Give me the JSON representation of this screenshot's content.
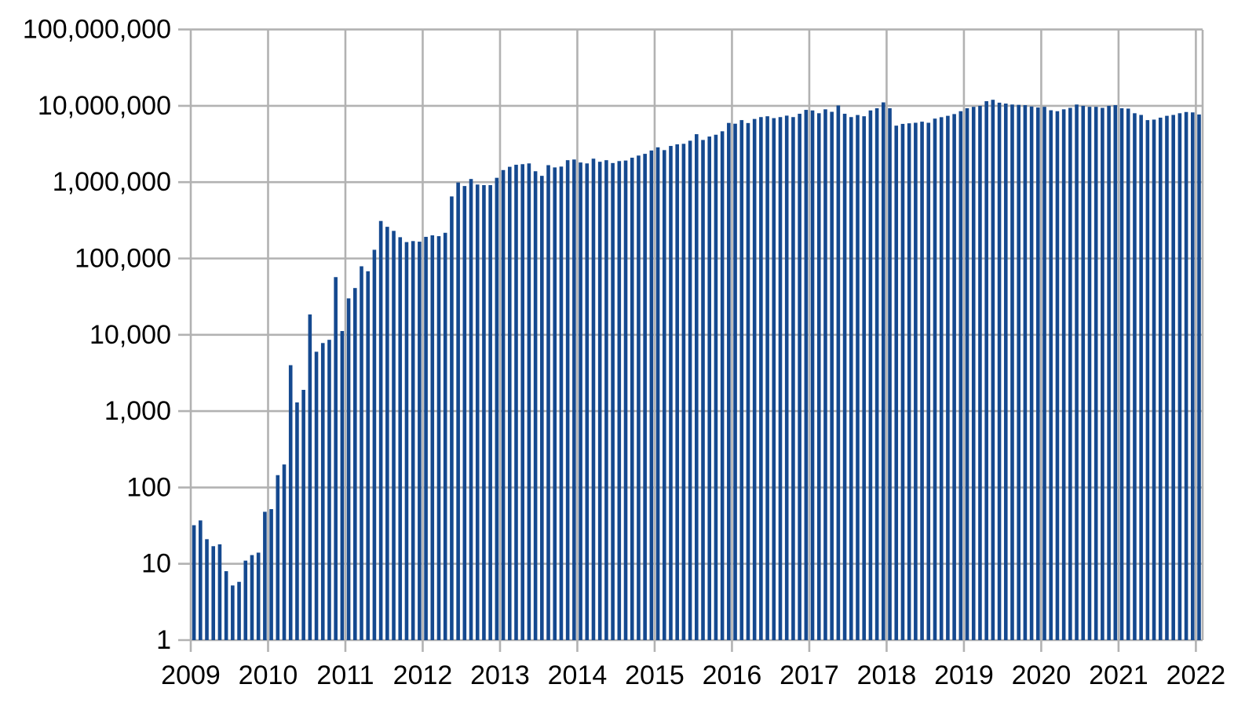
{
  "chart_data": {
    "type": "bar",
    "title": "",
    "xlabel": "",
    "ylabel": "",
    "y_scale": "log",
    "ylim": [
      1,
      100000000
    ],
    "grid": true,
    "legend": false,
    "bar_color": "#15498f",
    "grid_color": "#b2b2b2",
    "text_color": "#000000",
    "background_color": "#ffffff",
    "x_tick_labels": [
      "2009",
      "2010",
      "2011",
      "2012",
      "2013",
      "2014",
      "2015",
      "2016",
      "2017",
      "2018",
      "2019",
      "2020",
      "2021",
      "2022"
    ],
    "y_tick_labels": [
      "1",
      "10",
      "100",
      "1,000",
      "10,000",
      "100,000",
      "1,000,000",
      "10,000,000",
      "100,000,000"
    ],
    "x_unit": "month",
    "start_month": "2009-01",
    "end_month": "2022-01",
    "values_by_year": {
      "2009": [
        32,
        37,
        21,
        17,
        18,
        8,
        5.2,
        5.8,
        11,
        13,
        14,
        48
      ],
      "2010": [
        52,
        145,
        200,
        4000,
        1300,
        1900,
        18500,
        6000,
        7800,
        8600,
        57000,
        11200
      ],
      "2011": [
        30000,
        41000,
        79000,
        68000,
        130000,
        310000,
        260000,
        230000,
        190000,
        164000,
        169000,
        166000
      ],
      "2012": [
        192000,
        201000,
        196000,
        217000,
        650000,
        990000,
        890000,
        1100000,
        930000,
        915000,
        915000,
        1140000
      ],
      "2013": [
        1440000,
        1590000,
        1690000,
        1720000,
        1760000,
        1390000,
        1210000,
        1670000,
        1560000,
        1600000,
        1940000,
        1980000
      ],
      "2014": [
        1810000,
        1760000,
        2030000,
        1850000,
        1940000,
        1780000,
        1890000,
        1920000,
        2090000,
        2230000,
        2350000,
        2600000
      ],
      "2015": [
        2860000,
        2630000,
        2980000,
        3130000,
        3180000,
        3490000,
        4250000,
        3570000,
        3960000,
        4180000,
        4640000,
        5970000
      ],
      "2016": [
        5830000,
        6500000,
        5950000,
        6730000,
        7120000,
        7300000,
        6900000,
        7120000,
        7440000,
        7120000,
        7870000,
        8850000
      ],
      "2017": [
        8700000,
        8000000,
        9000000,
        8350000,
        10100000,
        7870000,
        7120000,
        7580000,
        7300000,
        8700000,
        9300000,
        11100000
      ],
      "2018": [
        9300000,
        5500000,
        5800000,
        5900000,
        6000000,
        6200000,
        6000000,
        6800000,
        7100000,
        7400000,
        7800000,
        8500000
      ],
      "2019": [
        9300000,
        9700000,
        10000000,
        11500000,
        12000000,
        11000000,
        10700000,
        10400000,
        10300000,
        10200000,
        9800000,
        9500000
      ],
      "2020": [
        9700000,
        8750000,
        8500000,
        9000000,
        9400000,
        10400000,
        10000000,
        9700000,
        9700000,
        9400000,
        10000000,
        10200000
      ],
      "2021": [
        9300000,
        9200000,
        8000000,
        7600000,
        6500000,
        6600000,
        7000000,
        7400000,
        7600000,
        8000000,
        8300000,
        8200000
      ],
      "2022": [
        7700000
      ]
    }
  }
}
